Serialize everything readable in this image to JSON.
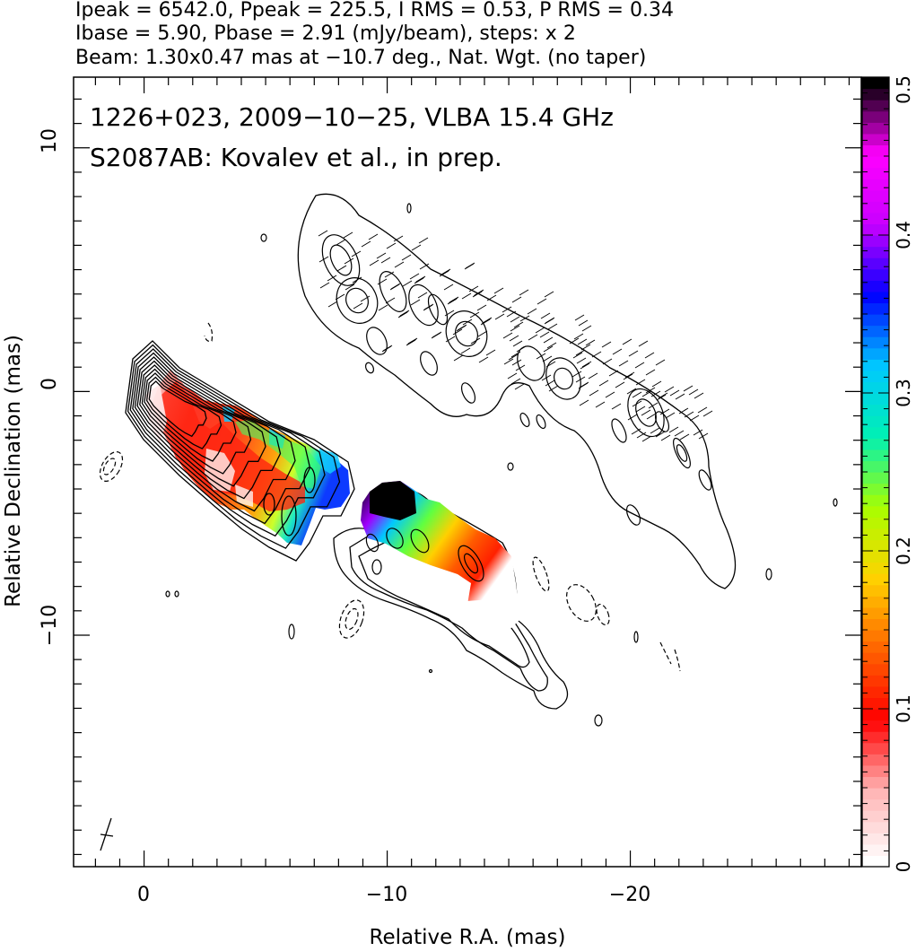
{
  "header": {
    "line1": "Ipeak = 6542.0, Ppeak = 225.5, I RMS = 0.53, P RMS = 0.34",
    "line2": "Ibase = 5.90, Pbase = 2.91 (mJy/beam), steps: x 2",
    "line3": "Beam: 1.30x0.47 mas at −10.7 deg., Nat. Wgt. (no taper)"
  },
  "annotation": {
    "line1": "1226+023, 2009−10−25, VLBA 15.4 GHz",
    "line2": "S2087AB: Kovalev et al., in prep."
  },
  "chart_data": {
    "type": "contour",
    "xlabel": "Relative R.A. (mas)",
    "ylabel": "Relative Declination (mas)",
    "xlim": [
      2.9,
      -29.5
    ],
    "ylim": [
      -19.5,
      12.9
    ],
    "x_reversed": true,
    "x_ticks": [
      0,
      -10,
      -20
    ],
    "x_tick_labels": [
      "0",
      "−10",
      "−20"
    ],
    "y_ticks": [
      10,
      0,
      -10
    ],
    "y_tick_labels": [
      "10",
      "0",
      "−10"
    ],
    "colorbar": {
      "range": [
        0,
        0.5
      ],
      "ticks": [
        0,
        0.1,
        0.2,
        0.3,
        0.4,
        0.5
      ],
      "tick_labels": [
        "0",
        "0.1",
        "0.2",
        "0.3",
        "0.4",
        "0.5"
      ],
      "colors": [
        "#ffffff",
        "#ffb4b4",
        "#ff0000",
        "#ff6400",
        "#ffd200",
        "#a8ff00",
        "#00f0b4",
        "#00c8ff",
        "#0000ff",
        "#c800ff",
        "#ff00ff",
        "#000000"
      ]
    },
    "panels": [
      {
        "name": "total intensity + fractional polarization",
        "offset_ra": 0,
        "offset_dec": 0
      },
      {
        "name": "EVPA ticks",
        "offset_ra": -8,
        "offset_dec": 5.4
      },
      {
        "name": "polarized intensity",
        "offset_ra": -9.3,
        "offset_dec": -4.7
      }
    ],
    "beam": {
      "major": 1.3,
      "minor": 0.47,
      "pa_deg": -10.7,
      "position": "bottom-left"
    }
  }
}
